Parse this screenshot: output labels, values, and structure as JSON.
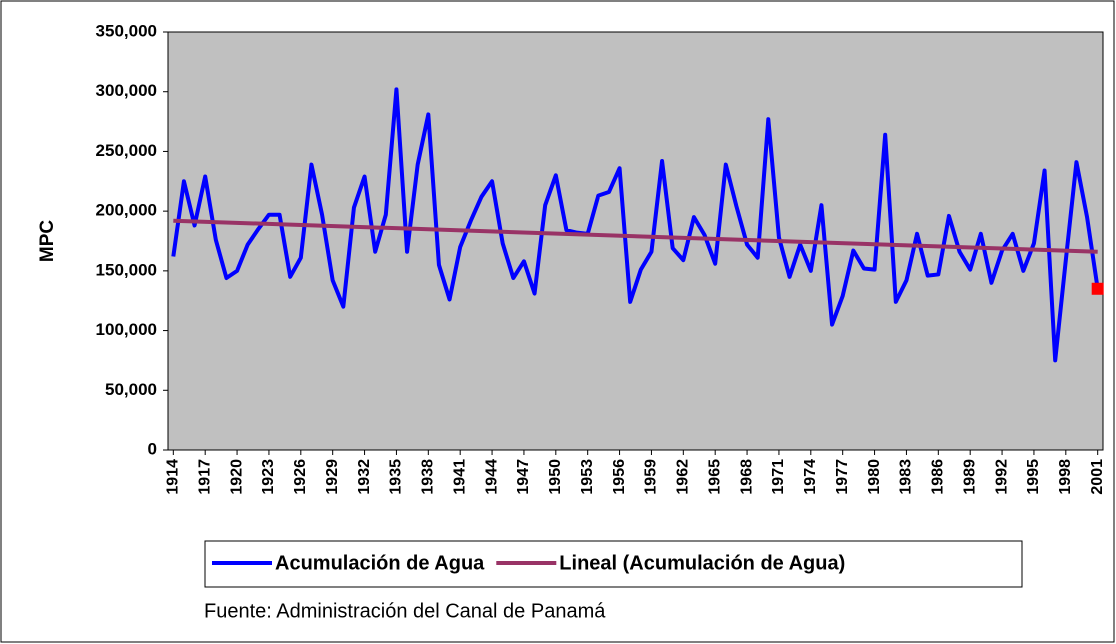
{
  "chart_data": {
    "type": "line",
    "ylabel": "MPC",
    "x": [
      1914,
      1915,
      1916,
      1917,
      1918,
      1919,
      1920,
      1921,
      1922,
      1923,
      1924,
      1925,
      1926,
      1927,
      1928,
      1929,
      1930,
      1931,
      1932,
      1933,
      1934,
      1935,
      1936,
      1937,
      1938,
      1939,
      1940,
      1941,
      1942,
      1943,
      1944,
      1945,
      1946,
      1947,
      1948,
      1949,
      1950,
      1951,
      1952,
      1953,
      1954,
      1955,
      1956,
      1957,
      1958,
      1959,
      1960,
      1961,
      1962,
      1963,
      1964,
      1965,
      1966,
      1967,
      1968,
      1969,
      1970,
      1971,
      1972,
      1973,
      1974,
      1975,
      1976,
      1977,
      1978,
      1979,
      1980,
      1981,
      1982,
      1983,
      1984,
      1985,
      1986,
      1987,
      1988,
      1989,
      1990,
      1991,
      1992,
      1993,
      1994,
      1995,
      1996,
      1997,
      1998,
      1999,
      2000,
      2001
    ],
    "xlim": [
      1913.5,
      2001.5
    ],
    "xticks": [
      1914,
      1917,
      1920,
      1923,
      1926,
      1929,
      1932,
      1935,
      1938,
      1941,
      1944,
      1947,
      1950,
      1953,
      1956,
      1959,
      1962,
      1965,
      1968,
      1971,
      1974,
      1977,
      1980,
      1983,
      1986,
      1989,
      1992,
      1995,
      1998,
      2001
    ],
    "ylim": [
      0,
      350000
    ],
    "yticks": [
      {
        "value": 0,
        "label": "0"
      },
      {
        "value": 50000,
        "label": "50,000"
      },
      {
        "value": 100000,
        "label": "100,000"
      },
      {
        "value": 150000,
        "label": "150,000"
      },
      {
        "value": 200000,
        "label": "200,000"
      },
      {
        "value": 250000,
        "label": "250,000"
      },
      {
        "value": 300000,
        "label": "300,000"
      },
      {
        "value": 350000,
        "label": "350,000"
      }
    ],
    "series": [
      {
        "name": "Acumulación de Agua",
        "color": "#0000ff",
        "values": [
          162000,
          225000,
          188000,
          229000,
          176000,
          144000,
          150000,
          172000,
          185000,
          197000,
          197000,
          145000,
          161000,
          239000,
          197000,
          142000,
          120000,
          203000,
          229000,
          166000,
          197000,
          302000,
          166000,
          239000,
          281000,
          155000,
          126000,
          170000,
          192000,
          212000,
          225000,
          173000,
          144000,
          158000,
          131000,
          205000,
          230000,
          184000,
          182000,
          181000,
          213000,
          216000,
          236000,
          124000,
          151000,
          166000,
          242000,
          169000,
          159000,
          195000,
          180000,
          156000,
          239000,
          204000,
          172000,
          161000,
          277000,
          178000,
          145000,
          172000,
          150000,
          205000,
          105000,
          129000,
          167000,
          152000,
          151000,
          264000,
          124000,
          142000,
          181000,
          146000,
          147000,
          196000,
          166000,
          151000,
          181000,
          140000,
          167000,
          181000,
          150000,
          173000,
          234000,
          75000,
          159000,
          241000,
          195000,
          135000
        ]
      }
    ],
    "trendline": {
      "name": "Lineal (Acumulación de Agua)",
      "color": "#993366",
      "x": [
        1914,
        2001
      ],
      "values": [
        192000,
        166000
      ]
    },
    "highlight_last_color": "#ff0000",
    "plot_background": "#c0c0c0",
    "grid": false,
    "caption": "Fuente: Administración del Canal de Panamá"
  }
}
